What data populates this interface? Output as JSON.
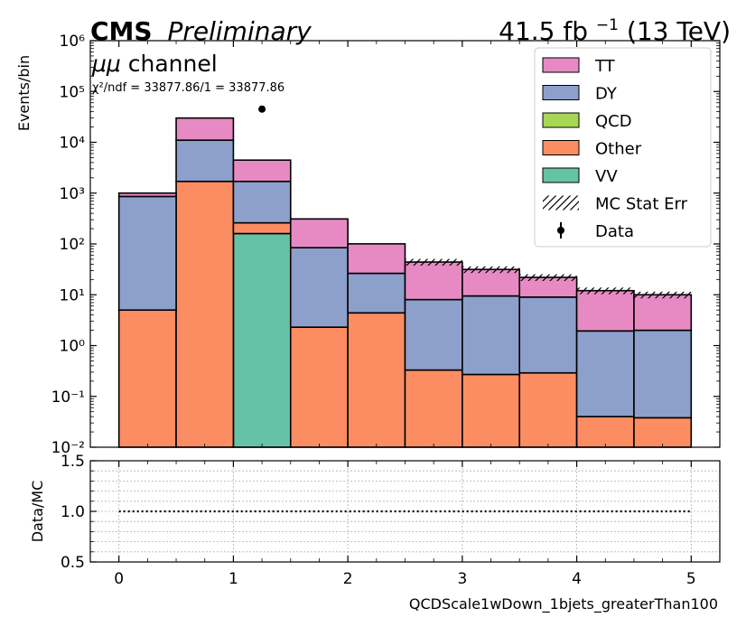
{
  "header": {
    "experiment": "CMS",
    "status": "Preliminary",
    "lumi_value": "41.5 fb",
    "lumi_exp": "−1",
    "energy": " (13 TeV)",
    "channel_mu": "μμ",
    "channel_rest": " channel",
    "chi2_text": "χ²/ndf = 33877.86/1 = 33877.86"
  },
  "chart_data": {
    "type": "bar",
    "stacked": true,
    "xlabel": "QCDScale1wDown_1bjets_greaterThan100",
    "ylabel": "Events/bin",
    "ratio_ylabel": "Data/MC",
    "yscale": "log",
    "xlim": [
      -0.25,
      5.25
    ],
    "ylim": [
      0.01,
      1000000
    ],
    "ratio_ylim": [
      0.5,
      1.5
    ],
    "bin_edges": [
      0,
      0.5,
      1,
      1.5,
      2,
      2.5,
      3,
      3.5,
      4,
      4.5,
      5
    ],
    "x_ticks": [
      "0",
      "1",
      "2",
      "3",
      "4",
      "5"
    ],
    "y_ticks": [
      "10⁻²",
      "10⁻¹",
      "10⁰",
      "10¹",
      "10²",
      "10³",
      "10⁴",
      "10⁵",
      "10⁶"
    ],
    "ratio_ticks": [
      "0.5",
      "1.0",
      "1.5"
    ],
    "legend_position": "top-right",
    "grid": true,
    "series": [
      {
        "name": "VV",
        "color": "#66c2a5",
        "values": [
          0,
          0,
          160,
          0,
          0,
          0,
          0,
          0,
          0,
          0
        ]
      },
      {
        "name": "Other",
        "color": "#fc8d62",
        "values": [
          5,
          1700,
          100,
          2.3,
          4.4,
          0.33,
          0.27,
          0.29,
          0.04,
          0.038
        ]
      },
      {
        "name": "QCD",
        "color": "#a6d854",
        "values": [
          0,
          0,
          0,
          0,
          0,
          0,
          0,
          0,
          0,
          0
        ]
      },
      {
        "name": "DY",
        "color": "#8da0cb",
        "values": [
          855,
          9300,
          1440,
          82,
          22,
          7.7,
          9.2,
          8.7,
          1.9,
          1.96
        ]
      },
      {
        "name": "TT",
        "color": "#e78ac3",
        "values": [
          140,
          19000,
          2760,
          226,
          74,
          36,
          22,
          13,
          10.1,
          8.0
        ]
      }
    ],
    "stat_err_bins": [
      5,
      6,
      7,
      8,
      9
    ],
    "stat_err_rel": 0.15,
    "data_points": [
      {
        "x": 1.25,
        "y": 45000
      }
    ],
    "ratio_line": 1.0,
    "legend": [
      {
        "label": "TT",
        "kind": "patch",
        "color": "#e78ac3"
      },
      {
        "label": "DY",
        "kind": "patch",
        "color": "#8da0cb"
      },
      {
        "label": "QCD",
        "kind": "patch",
        "color": "#a6d854"
      },
      {
        "label": "Other",
        "kind": "patch",
        "color": "#fc8d62"
      },
      {
        "label": "VV",
        "kind": "patch",
        "color": "#66c2a5"
      },
      {
        "label": "MC Stat Err",
        "kind": "hatch",
        "color": "#000000"
      },
      {
        "label": "Data",
        "kind": "point",
        "color": "#000000"
      }
    ]
  }
}
